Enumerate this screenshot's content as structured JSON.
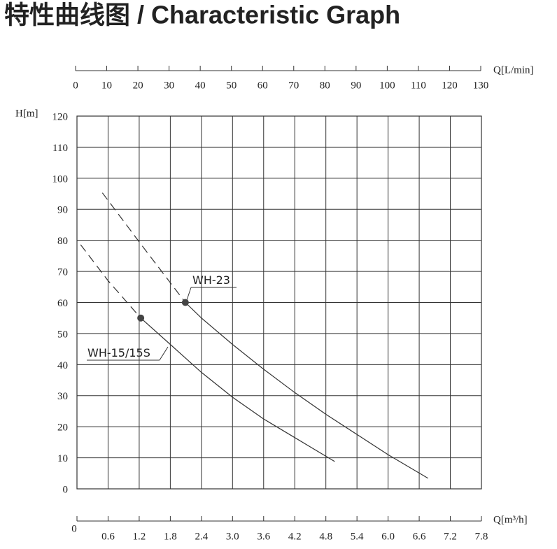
{
  "chart_data": {
    "type": "line",
    "title": "特性曲线图 / Characteristic Graph",
    "xlabel": "Q[m³/h]",
    "x2label": "Q[L/min]",
    "ylabel": "H[m]",
    "xlim": [
      0,
      7.8
    ],
    "xticks": [
      0,
      0.6,
      1.2,
      1.8,
      2.4,
      {
        "value": 3,
        "label": "3.0"
      },
      3.6,
      4.2,
      4.8,
      5.4,
      {
        "value": 6,
        "label": "6.0"
      },
      6.6,
      7.2,
      7.8
    ],
    "x2lim": [
      0,
      130
    ],
    "x2ticks": [
      0,
      10,
      20,
      30,
      40,
      50,
      60,
      70,
      80,
      90,
      100,
      110,
      120,
      130
    ],
    "ylim": [
      0,
      120
    ],
    "yticks": [
      0,
      10,
      20,
      30,
      40,
      50,
      60,
      70,
      80,
      90,
      100,
      110,
      120
    ],
    "grid": true,
    "series": [
      {
        "name": "WH-23",
        "color": "#333333",
        "segments": [
          {
            "style": "dashed",
            "x": [
              0.49,
              1.2,
              2.09
            ],
            "values": [
              95.3,
              79.5,
              60
            ]
          },
          {
            "style": "solid",
            "x": [
              2.09,
              2.4,
              3.0,
              3.6,
              4.2,
              4.8,
              5.4,
              6.0,
              6.77
            ],
            "values": [
              60,
              55,
              46.5,
              38.5,
              31,
              24,
              17.5,
              11,
              3.4
            ]
          }
        ],
        "marker": {
          "x": 2.09,
          "value": 60
        }
      },
      {
        "name": "WH-15/15S",
        "color": "#333333",
        "segments": [
          {
            "style": "dashed",
            "x": [
              0.07,
              0.6,
              1.23
            ],
            "values": [
              78.6,
              67,
              55
            ]
          },
          {
            "style": "solid",
            "x": [
              1.23,
              1.8,
              2.4,
              3.0,
              3.6,
              4.2,
              4.97
            ],
            "values": [
              55,
              46.5,
              37.5,
              29.5,
              22.5,
              16.5,
              8.8
            ]
          }
        ],
        "marker": {
          "x": 1.23,
          "value": 55
        }
      }
    ]
  }
}
